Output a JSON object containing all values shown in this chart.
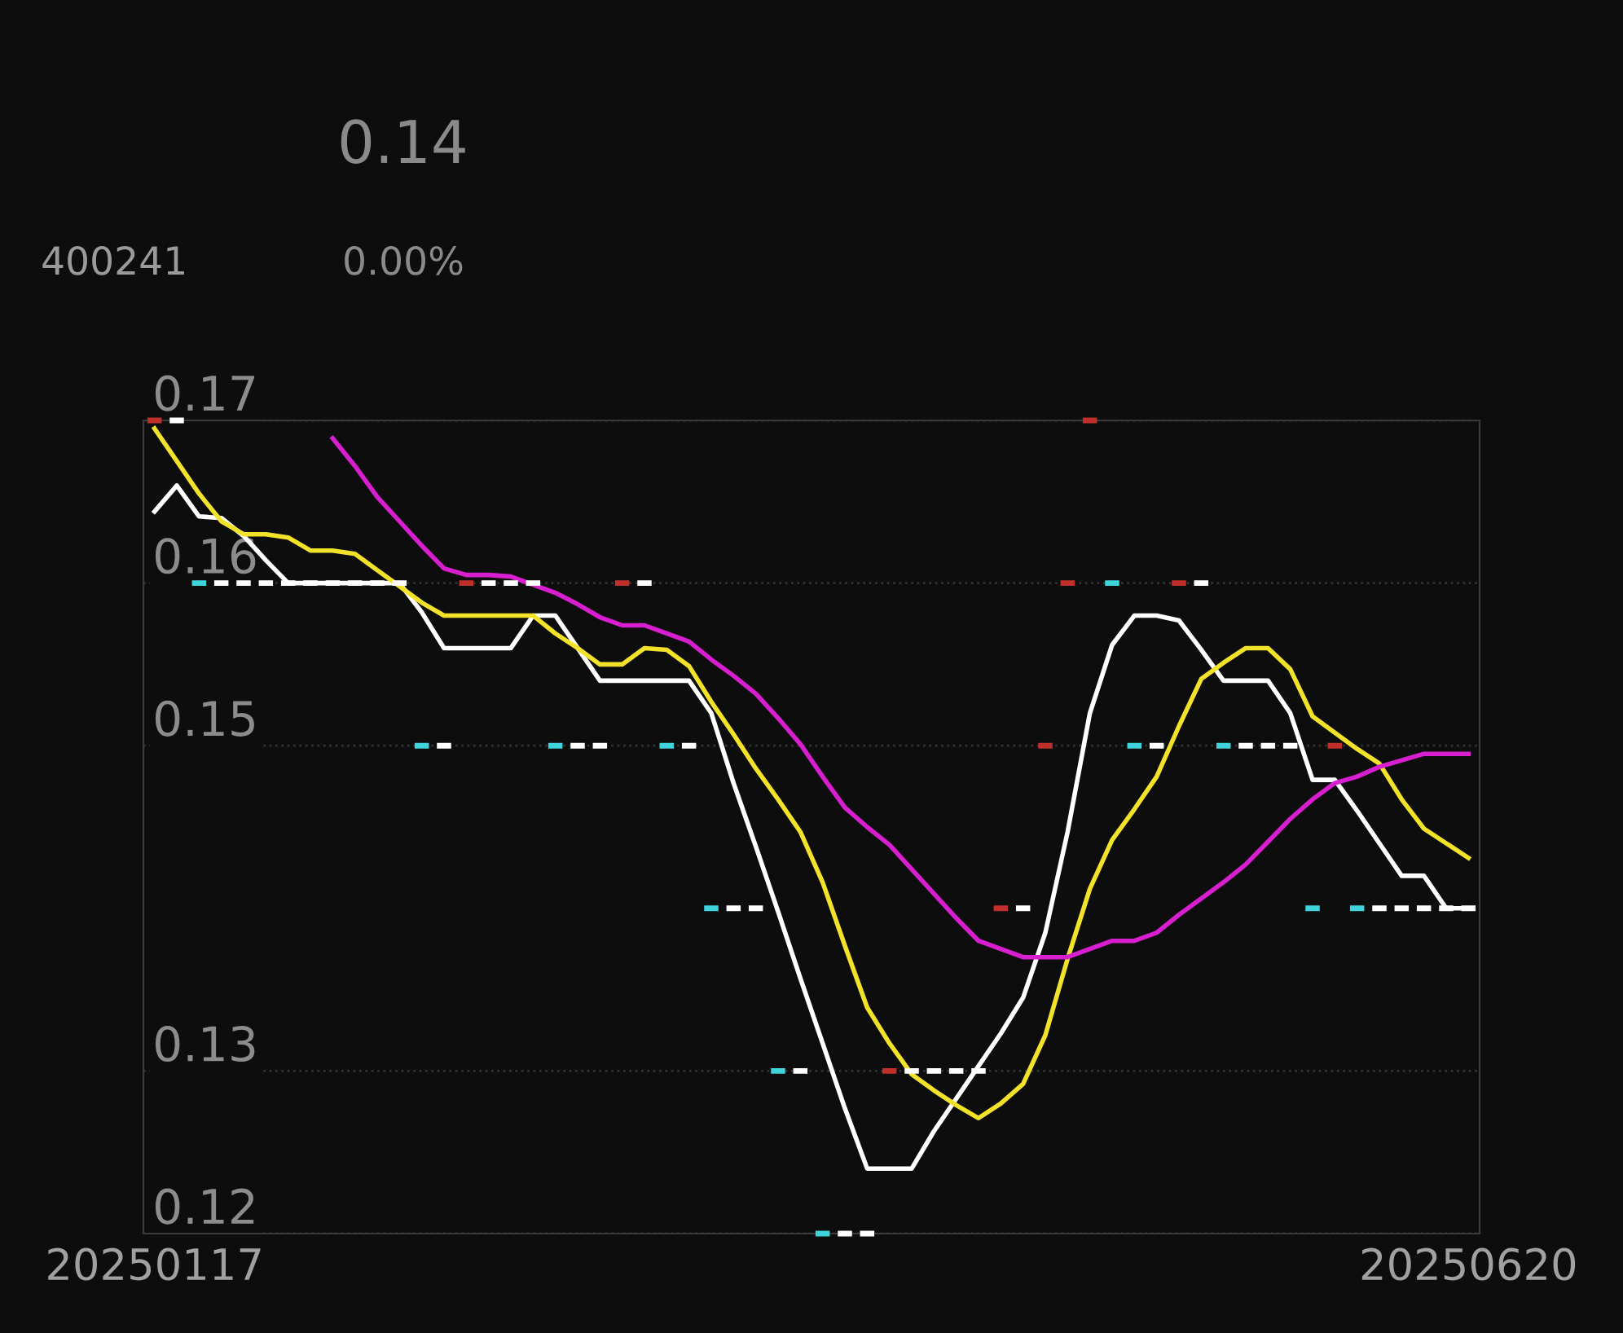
{
  "chart_data": {
    "type": "candlestick",
    "annotations": [
      "0.14",
      "400241",
      "0.00%"
    ],
    "categories": [
      "20250117",
      null,
      null,
      null,
      null,
      null,
      null,
      null,
      null,
      null,
      null,
      null,
      null,
      null,
      null,
      null,
      null,
      null,
      null,
      null,
      null,
      null,
      null,
      null,
      null,
      null,
      null,
      null,
      null,
      null,
      null,
      null,
      null,
      null,
      null,
      null,
      null,
      null,
      null,
      null,
      null,
      null,
      null,
      null,
      null,
      null,
      null,
      null,
      null,
      null,
      null,
      null,
      null,
      null,
      null,
      null,
      null,
      null,
      null,
      "20250620"
    ],
    "ohlc": [
      [
        0.17,
        0.17,
        0.17,
        0.17
      ],
      [
        0.17,
        0.17,
        0.17,
        0.17
      ],
      [
        0.16,
        0.16,
        0.16,
        0.16
      ],
      [
        0.16,
        0.16,
        0.16,
        0.16
      ],
      [
        0.16,
        0.16,
        0.16,
        0.16
      ],
      [
        0.16,
        0.16,
        0.16,
        0.16
      ],
      [
        0.16,
        0.16,
        0.16,
        0.16
      ],
      [
        0.16,
        0.16,
        0.16,
        0.16
      ],
      [
        0.16,
        0.16,
        0.16,
        0.16
      ],
      [
        0.16,
        0.16,
        0.16,
        0.16
      ],
      [
        0.16,
        0.16,
        0.16,
        0.16
      ],
      [
        0.16,
        0.16,
        0.16,
        0.16
      ],
      [
        0.15,
        0.15,
        0.15,
        0.15
      ],
      [
        0.15,
        0.15,
        0.15,
        0.15
      ],
      [
        0.16,
        0.16,
        0.16,
        0.16
      ],
      [
        0.16,
        0.16,
        0.16,
        0.16
      ],
      [
        0.16,
        0.16,
        0.16,
        0.16
      ],
      [
        0.16,
        0.16,
        0.16,
        0.16
      ],
      [
        0.15,
        0.15,
        0.15,
        0.15
      ],
      [
        0.15,
        0.15,
        0.15,
        0.15
      ],
      [
        0.15,
        0.15,
        0.15,
        0.15
      ],
      [
        0.16,
        0.16,
        0.16,
        0.16
      ],
      [
        0.16,
        0.16,
        0.16,
        0.16
      ],
      [
        0.15,
        0.15,
        0.15,
        0.15
      ],
      [
        0.15,
        0.15,
        0.15,
        0.15
      ],
      [
        0.14,
        0.14,
        0.14,
        0.14
      ],
      [
        0.14,
        0.14,
        0.14,
        0.14
      ],
      [
        0.14,
        0.14,
        0.14,
        0.14
      ],
      [
        0.13,
        0.13,
        0.13,
        0.13
      ],
      [
        0.13,
        0.13,
        0.13,
        0.13
      ],
      [
        0.12,
        0.12,
        0.12,
        0.12
      ],
      [
        0.12,
        0.12,
        0.12,
        0.12
      ],
      [
        0.12,
        0.12,
        0.12,
        0.12
      ],
      [
        0.13,
        0.13,
        0.13,
        0.13
      ],
      [
        0.13,
        0.13,
        0.13,
        0.13
      ],
      [
        0.13,
        0.13,
        0.13,
        0.13
      ],
      [
        0.13,
        0.13,
        0.13,
        0.13
      ],
      [
        0.13,
        0.13,
        0.13,
        0.13
      ],
      [
        0.14,
        0.14,
        0.14,
        0.14
      ],
      [
        0.14,
        0.14,
        0.14,
        0.14
      ],
      [
        0.15,
        0.15,
        0.15,
        0.15
      ],
      [
        0.16,
        0.16,
        0.16,
        0.16
      ],
      [
        0.17,
        0.17,
        0.17,
        0.17
      ],
      [
        0.16,
        0.16,
        0.16,
        0.16
      ],
      [
        0.15,
        0.15,
        0.15,
        0.15
      ],
      [
        0.15,
        0.15,
        0.15,
        0.15
      ],
      [
        0.16,
        0.16,
        0.16,
        0.16
      ],
      [
        0.16,
        0.16,
        0.16,
        0.16
      ],
      [
        0.15,
        0.15,
        0.15,
        0.15
      ],
      [
        0.15,
        0.15,
        0.15,
        0.15
      ],
      [
        0.15,
        0.15,
        0.15,
        0.15
      ],
      [
        0.15,
        0.15,
        0.15,
        0.15
      ],
      [
        0.14,
        0.14,
        0.14,
        0.14
      ],
      [
        0.15,
        0.15,
        0.15,
        0.15
      ],
      [
        0.14,
        0.14,
        0.14,
        0.14
      ],
      [
        0.14,
        0.14,
        0.14,
        0.14
      ],
      [
        0.14,
        0.14,
        0.14,
        0.14
      ],
      [
        0.14,
        0.14,
        0.14,
        0.14
      ],
      [
        0.14,
        0.14,
        0.14,
        0.14
      ],
      [
        0.14,
        0.14,
        0.14,
        0.14
      ]
    ],
    "colors": [
      "#c0302b",
      "#ffffff",
      "#3fd3dc",
      "#ffffff",
      "#ffffff",
      "#ffffff",
      "#ffffff",
      "#ffffff",
      "#ffffff",
      "#ffffff",
      "#ffffff",
      "#ffffff",
      "#3fd3dc",
      "#ffffff",
      "#c0302b",
      "#ffffff",
      "#ffffff",
      "#ffffff",
      "#3fd3dc",
      "#ffffff",
      "#ffffff",
      "#c0302b",
      "#ffffff",
      "#3fd3dc",
      "#ffffff",
      "#3fd3dc",
      "#ffffff",
      "#ffffff",
      "#3fd3dc",
      "#ffffff",
      "#3fd3dc",
      "#ffffff",
      "#ffffff",
      "#c0302b",
      "#ffffff",
      "#ffffff",
      "#ffffff",
      "#ffffff",
      "#c0302b",
      "#ffffff",
      "#c0302b",
      "#c0302b",
      "#c0302b",
      "#3fd3dc",
      "#3fd3dc",
      "#ffffff",
      "#c0302b",
      "#ffffff",
      "#3fd3dc",
      "#ffffff",
      "#ffffff",
      "#ffffff",
      "#3fd3dc",
      "#c0302b",
      "#3fd3dc",
      "#ffffff",
      "#ffffff",
      "#ffffff",
      "#ffffff",
      "#ffffff"
    ],
    "series": [
      {
        "type": "line",
        "color": "#ffffff",
        "values": [
          0.1644,
          0.166,
          0.1641,
          0.164,
          0.1629,
          0.1614,
          0.16,
          0.16,
          0.16,
          0.16,
          0.16,
          0.16,
          0.1582,
          0.156,
          0.156,
          0.156,
          0.156,
          0.158,
          0.158,
          0.156,
          0.154,
          0.154,
          0.154,
          0.154,
          0.154,
          0.152,
          0.1477,
          0.1438,
          0.1398,
          0.1357,
          0.1317,
          0.1277,
          0.124,
          0.124,
          0.124,
          0.1263,
          0.1283,
          0.1303,
          0.1323,
          0.1345,
          0.1385,
          0.1447,
          0.152,
          0.1562,
          0.158,
          0.158,
          0.1577,
          0.1559,
          0.154,
          0.154,
          0.154,
          0.152,
          0.1479,
          0.1479,
          0.146,
          0.144,
          0.142,
          0.142,
          0.14,
          0.14
        ]
      },
      {
        "type": "line",
        "color": "#f2e22a",
        "values": [
          0.1695,
          0.1675,
          0.1655,
          0.1638,
          0.163,
          0.163,
          0.1628,
          0.162,
          0.162,
          0.1618,
          0.1608,
          0.1598,
          0.1588,
          0.158,
          0.158,
          0.158,
          0.158,
          0.158,
          0.1569,
          0.156,
          0.155,
          0.155,
          0.156,
          0.1559,
          0.1549,
          0.1527,
          0.1507,
          0.1486,
          0.1467,
          0.1447,
          0.1416,
          0.1377,
          0.1339,
          0.1317,
          0.1298,
          0.1288,
          0.1279,
          0.1271,
          0.128,
          0.1292,
          0.1322,
          0.1369,
          0.1412,
          0.1442,
          0.1461,
          0.1481,
          0.1512,
          0.1541,
          0.1551,
          0.156,
          0.156,
          0.1547,
          0.1518,
          0.1508,
          0.1498,
          0.1489,
          0.1467,
          0.1449,
          0.144,
          0.1431
        ]
      },
      {
        "type": "line",
        "color": "#d81fd0",
        "values": [
          null,
          null,
          null,
          null,
          null,
          null,
          null,
          null,
          0.1689,
          0.1672,
          0.1653,
          0.1638,
          0.1623,
          0.1609,
          0.1605,
          0.1605,
          0.1604,
          0.1599,
          0.1594,
          0.1587,
          0.1579,
          0.1574,
          0.1574,
          0.1569,
          0.1564,
          0.1553,
          0.1543,
          0.1532,
          0.1517,
          0.1501,
          0.1481,
          0.1462,
          0.145,
          0.1439,
          0.1424,
          0.1409,
          0.1394,
          0.138,
          0.1375,
          0.137,
          0.137,
          0.137,
          0.1375,
          0.138,
          0.138,
          0.1385,
          0.1396,
          0.1406,
          0.1416,
          0.1427,
          0.1441,
          0.1455,
          0.1467,
          0.1477,
          0.1481,
          0.1487,
          0.1491,
          0.1495,
          0.1495,
          0.1495
        ]
      }
    ],
    "ylim": [
      0.12,
      0.17
    ],
    "yticks": [
      0.17,
      0.16,
      0.15,
      0.13,
      0.12
    ],
    "grid": "y"
  }
}
